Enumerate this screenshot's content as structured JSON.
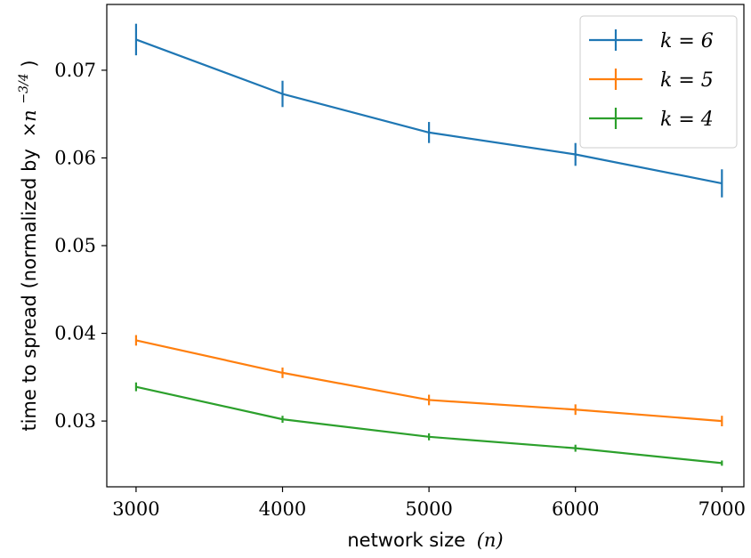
{
  "chart_data": {
    "type": "line",
    "xlabel": "network size",
    "xlabel_math": "(n)",
    "ylabel": "time to spread (normalized by",
    "ylabel_math": "×n",
    "ylabel_exp": "−3/4",
    "ylabel_close": ")",
    "x": [
      3000,
      4000,
      5000,
      6000,
      7000
    ],
    "xlim": [
      2800,
      7150
    ],
    "ylim": [
      0.0225,
      0.0775
    ],
    "xticks": [
      3000,
      4000,
      5000,
      6000,
      7000
    ],
    "xtick_labels": [
      "3000",
      "4000",
      "5000",
      "6000",
      "7000"
    ],
    "yticks": [
      0.03,
      0.04,
      0.05,
      0.06,
      0.07
    ],
    "ytick_labels": [
      "0.03",
      "0.04",
      "0.05",
      "0.06",
      "0.07"
    ],
    "grid": false,
    "legend_position": "top-right",
    "series": [
      {
        "name": "k = 6",
        "color": "#1f77b4",
        "values": [
          0.0735,
          0.0673,
          0.0629,
          0.0604,
          0.0571
        ],
        "errors": [
          0.0018,
          0.0015,
          0.0012,
          0.0013,
          0.0016
        ]
      },
      {
        "name": "k = 5",
        "color": "#ff7f0e",
        "values": [
          0.0392,
          0.0355,
          0.0324,
          0.0313,
          0.03
        ],
        "errors": [
          0.0006,
          0.0006,
          0.0006,
          0.0006,
          0.0006
        ]
      },
      {
        "name": "k = 4",
        "color": "#2ca02c",
        "values": [
          0.0339,
          0.0302,
          0.0282,
          0.0269,
          0.0252
        ],
        "errors": [
          0.0005,
          0.0004,
          0.0004,
          0.0004,
          0.0003
        ]
      }
    ]
  }
}
